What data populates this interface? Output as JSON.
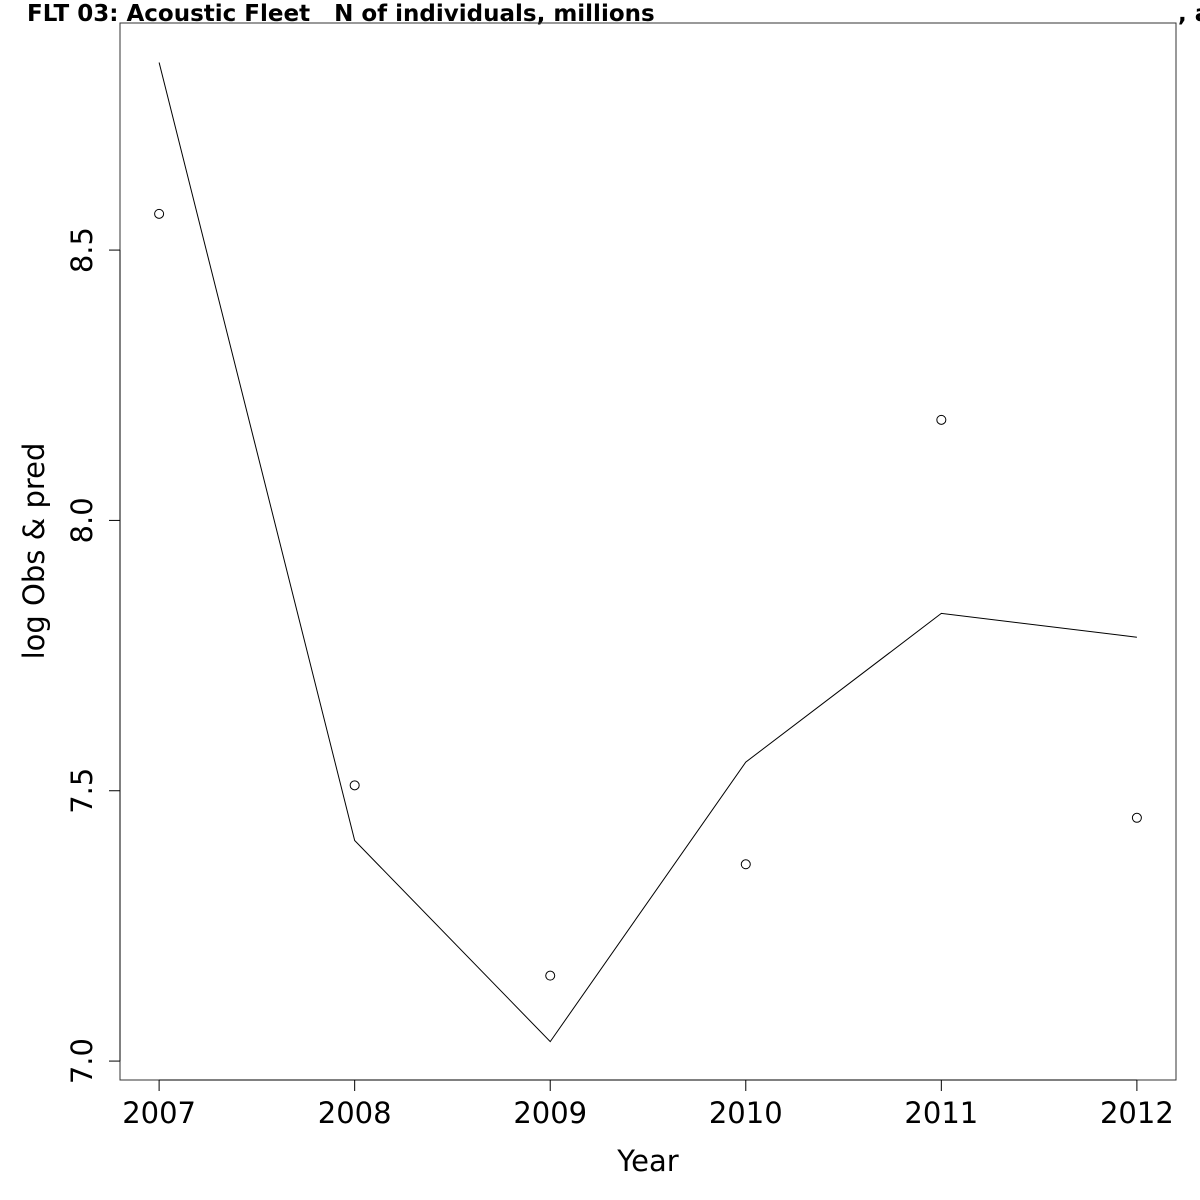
{
  "chart_data": {
    "type": "line",
    "title": "FLT 03: Acoustic Fleet   N of individuals, millions",
    "title_suffix": ", a",
    "xlabel": "Year",
    "ylabel": "log Obs & pred",
    "x": [
      2007,
      2008,
      2009,
      2010,
      2011,
      2012
    ],
    "xticks": [
      "2007",
      "2008",
      "2009",
      "2010",
      "2011",
      "2012"
    ],
    "yticks": [
      7.0,
      7.5,
      8.0,
      8.5
    ],
    "ytick_labels": [
      "7.0",
      "7.5",
      "8.0",
      "8.5"
    ],
    "xlim": [
      2006.8,
      2012.2
    ],
    "ylim": [
      6.965,
      8.92
    ],
    "series": [
      {
        "type": "scatter",
        "marker": "open-circle",
        "values": [
          8.567,
          7.51,
          7.158,
          7.364,
          8.186,
          7.45
        ]
      },
      {
        "type": "line",
        "values": [
          8.847,
          7.408,
          7.036,
          7.553,
          7.828,
          7.784
        ]
      }
    ],
    "grid": false,
    "color": "#000000"
  }
}
